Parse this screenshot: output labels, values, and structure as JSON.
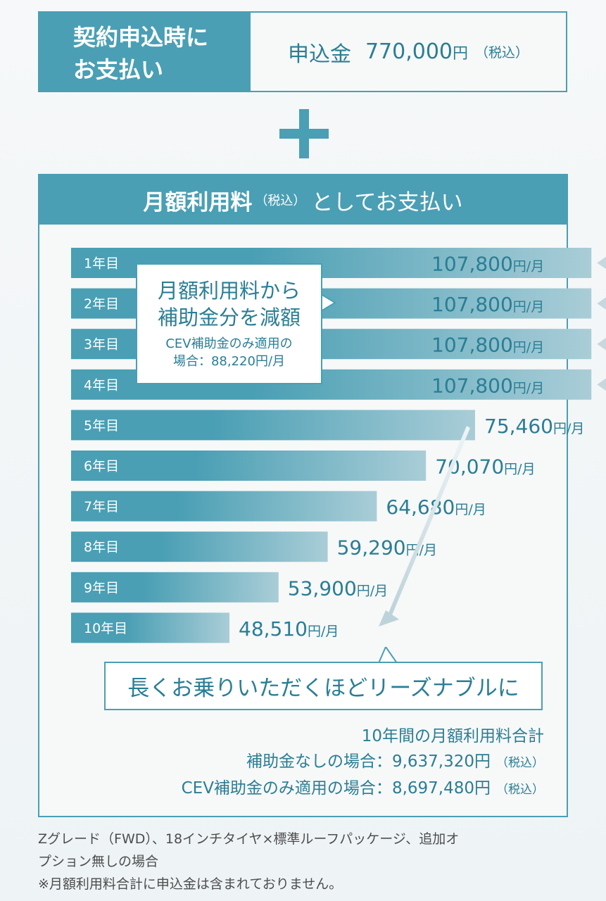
{
  "upfront": {
    "header_line1": "契約申込時に",
    "header_line2": "お支払い",
    "label": "申込金",
    "amount": "770,000",
    "yen": "円",
    "tax": "（税込）"
  },
  "monthly": {
    "header_main": "月額利用料",
    "header_tax": "（税込）",
    "header_rest": "としてお支払い",
    "unit": "円/月"
  },
  "callout": {
    "line1": "月額利用料から",
    "line2": "補助金分を減額",
    "line3": "CEV補助金のみ適用の",
    "line4": "場合：88,220円/月"
  },
  "chart_data": {
    "type": "bar",
    "orientation": "horizontal",
    "categories": [
      "1年目",
      "2年目",
      "3年目",
      "4年目",
      "5年目",
      "6年目",
      "7年目",
      "8年目",
      "9年目",
      "10年目"
    ],
    "values": [
      107800,
      107800,
      107800,
      107800,
      75460,
      70070,
      64680,
      59290,
      53900,
      48510
    ],
    "value_labels": [
      "107,800",
      "107,800",
      "107,800",
      "107,800",
      "75,460",
      "70,070",
      "64,680",
      "59,290",
      "53,900",
      "48,510"
    ],
    "unit_label": "円/月",
    "reduced_years_value": 88220,
    "colors": {
      "bar": "#4a9fb4",
      "bar_fade": "#a7ccd6",
      "dotted": "#4a9fb4",
      "arrow": "#c6d8dd"
    }
  },
  "tagline": "長くお乗りいただくほどリーズナブルに",
  "totals": {
    "heading": "10年間の月額利用料合計",
    "row1_label": "補助金なしの場合：",
    "row1_value": "9,637,320円",
    "row2_label": "CEV補助金のみ適用の場合：",
    "row2_value": "8,697,480円",
    "tax": "（税込）"
  },
  "footnote": {
    "line1": "Zグレード（FWD）、18インチタイヤ×標準ルーフパッケージ、追加オ",
    "line2": "プション無しの場合",
    "line3": "※月額利用料合計に申込金は含まれておりません。"
  }
}
